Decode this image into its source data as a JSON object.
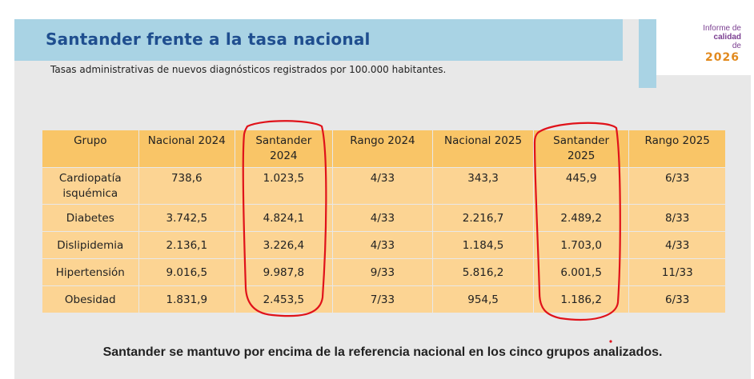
{
  "slide": {
    "title": "Santander frente a la tasa nacional",
    "subtitle": "Tasas administrativas de nuevos diagnósticos registrados por 100.000 habitantes.",
    "footer": "Santander se mantuvo por encima de la referencia nacional en los cinco grupos analizados."
  },
  "logo": {
    "line1": "Informe de",
    "line2": "calidad",
    "line3": "de",
    "year": "2026"
  },
  "table": {
    "headers": [
      "Grupo",
      "Nacional 2024",
      "Santander 2024",
      "Rango 2024",
      "Nacional 2025",
      "Santander 2025",
      "Rango 2025"
    ],
    "rows": [
      [
        "Cardiopatía isquémica",
        "738,6",
        "1.023,5",
        "4/33",
        "343,3",
        "445,9",
        "6/33"
      ],
      [
        "Diabetes",
        "3.742,5",
        "4.824,1",
        "4/33",
        "2.216,7",
        "2.489,2",
        "8/33"
      ],
      [
        "Dislipidemia",
        "2.136,1",
        "3.226,4",
        "4/33",
        "1.184,5",
        "1.703,0",
        "4/33"
      ],
      [
        "Hipertensión",
        "9.016,5",
        "9.987,8",
        "9/33",
        "5.816,2",
        "6.001,5",
        "11/33"
      ],
      [
        "Obesidad",
        "1.831,9",
        "2.453,5",
        "7/33",
        "954,5",
        "1.186,2",
        "6/33"
      ]
    ]
  },
  "colors": {
    "header_fill": "#f9c567",
    "cell_fill": "#fcd493",
    "title_bar": "#a9d3e4",
    "title_text": "#1f4e8f",
    "annotation_red": "#e0121a"
  }
}
